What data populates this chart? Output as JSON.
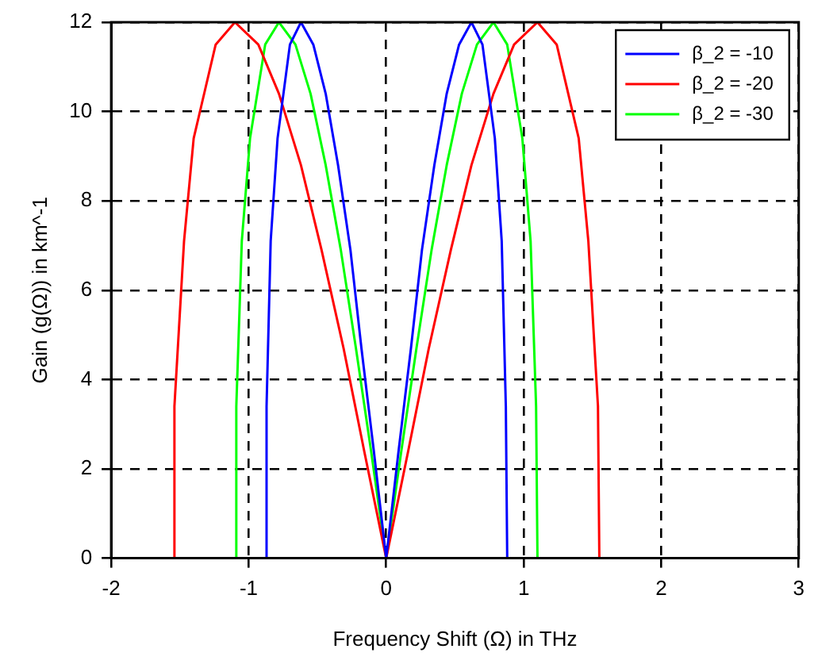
{
  "chart_data": {
    "type": "line",
    "xlabel": "Frequency Shift (Ω) in THz",
    "ylabel": "Gain (g(Ω)) in km^-1",
    "xlim": [
      -2,
      3
    ],
    "xticks": [
      -2,
      -1,
      0,
      1,
      2,
      3
    ],
    "ylim": [
      0,
      12
    ],
    "yticks": [
      0,
      2,
      4,
      6,
      8,
      10,
      12
    ],
    "grid": true,
    "legend": "top right",
    "marker": "none",
    "line_style": "solid",
    "series": [
      {
        "name": "β_2 = -10",
        "color": "#0000ff",
        "x": [
          -0.88,
          -0.87,
          -0.84,
          -0.79,
          -0.7,
          -0.62,
          -0.53,
          -0.44,
          -0.35,
          -0.26,
          -0.18,
          -0.09,
          0,
          0.09,
          0.18,
          0.26,
          0.35,
          0.44,
          0.53,
          0.62,
          0.7,
          0.79,
          0.84,
          0.87,
          0.88
        ],
        "values": [
          0,
          3.4,
          7.1,
          9.4,
          11.5,
          12,
          11.5,
          10.4,
          8.8,
          6.9,
          4.7,
          2.4,
          0,
          2.4,
          4.7,
          6.9,
          8.8,
          10.4,
          11.5,
          12,
          11.5,
          9.4,
          7.1,
          3.4,
          0
        ]
      },
      {
        "name": "β_2 = -20",
        "color": "#ff0000",
        "x": [
          -1.55,
          -1.54,
          -1.47,
          -1.4,
          -1.24,
          -1.1,
          -0.93,
          -0.78,
          -0.62,
          -0.47,
          -0.31,
          -0.16,
          0,
          0.16,
          0.31,
          0.47,
          0.62,
          0.78,
          0.93,
          1.1,
          1.24,
          1.4,
          1.47,
          1.54,
          1.55
        ],
        "values": [
          0,
          3.4,
          7.1,
          9.4,
          11.5,
          12,
          11.5,
          10.4,
          8.8,
          6.9,
          4.7,
          2.4,
          0,
          2.4,
          4.7,
          6.9,
          8.8,
          10.4,
          11.5,
          12,
          11.5,
          9.4,
          7.1,
          3.4,
          0
        ]
      },
      {
        "name": "β_2 = -30",
        "color": "#00ff00",
        "x": [
          -1.1,
          -1.09,
          -1.05,
          -0.99,
          -0.88,
          -0.78,
          -0.66,
          -0.55,
          -0.44,
          -0.33,
          -0.22,
          -0.11,
          0,
          0.11,
          0.22,
          0.33,
          0.44,
          0.55,
          0.66,
          0.78,
          0.88,
          0.99,
          1.05,
          1.09,
          1.1
        ],
        "values": [
          0,
          3.4,
          7.1,
          9.4,
          11.5,
          12,
          11.5,
          10.4,
          8.8,
          6.9,
          4.7,
          2.4,
          0,
          2.4,
          4.7,
          6.9,
          8.8,
          10.4,
          11.5,
          12,
          11.5,
          9.4,
          7.1,
          3.4,
          0
        ]
      }
    ]
  }
}
